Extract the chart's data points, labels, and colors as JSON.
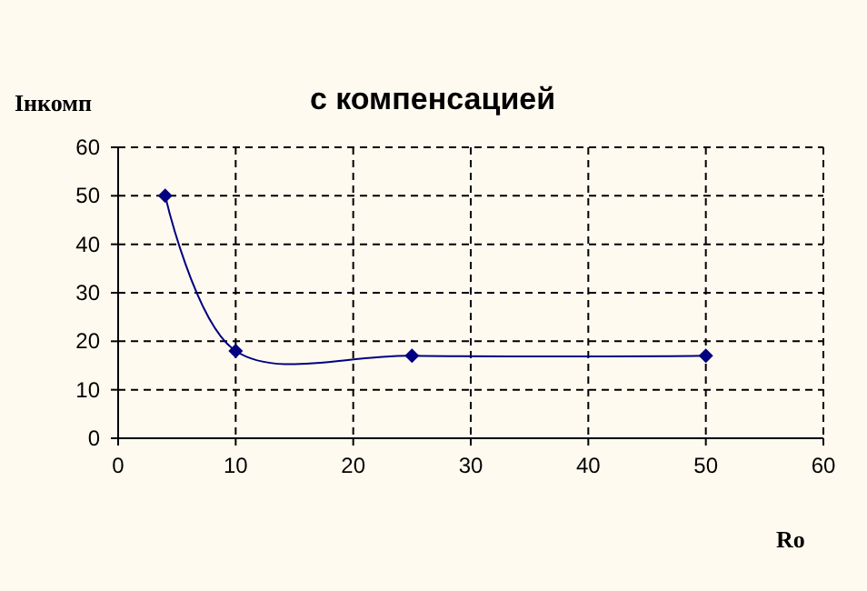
{
  "chart_data": {
    "type": "line",
    "title": "с компенсацией",
    "xlabel": "Ro",
    "ylabel": "Iнкомп",
    "series": [
      {
        "color": "#000080",
        "x": [
          4,
          10,
          25,
          50
        ],
        "values": [
          50,
          18,
          17,
          17
        ]
      }
    ],
    "xlim": [
      0,
      60
    ],
    "xticks": [
      0,
      10,
      20,
      30,
      40,
      50,
      60
    ],
    "ylim": [
      0,
      60
    ],
    "yticks": [
      0,
      10,
      20,
      30,
      40,
      50,
      60
    ],
    "grid": true,
    "marker": "diamond",
    "line_style": "solid"
  }
}
